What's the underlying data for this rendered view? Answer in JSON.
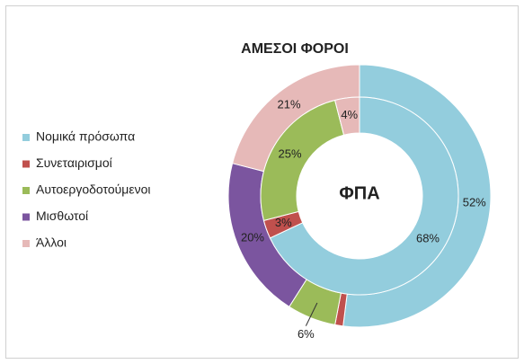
{
  "chart_data": {
    "type": "donut",
    "title": "ΑΜΕΣΟΙ ΦΟΡΟΙ",
    "center_label": "ΦΠΑ",
    "categories": [
      "Νομικά πρόσωπα",
      "Συνεταιρισμοί",
      "Αυτοεργοδοτούμενοι",
      "Μισθωτοί",
      "Άλλοι"
    ],
    "colors": [
      "#93cddd",
      "#c0504d",
      "#9bbb59",
      "#7b559f",
      "#e6b9b8"
    ],
    "legend": "left",
    "series": [
      {
        "name": "ΑΜΕΣΟΙ ΦΟΡΟΙ",
        "ring": "outer",
        "values": [
          52,
          1,
          6,
          20,
          21
        ],
        "value_labels": [
          "52%",
          null,
          "6%",
          "20%",
          "21%"
        ]
      },
      {
        "name": "ΦΠΑ",
        "ring": "inner",
        "values": [
          68,
          3,
          25,
          0,
          4
        ],
        "value_labels": [
          "68%",
          "3%",
          "25%",
          null,
          "4%"
        ]
      }
    ]
  }
}
